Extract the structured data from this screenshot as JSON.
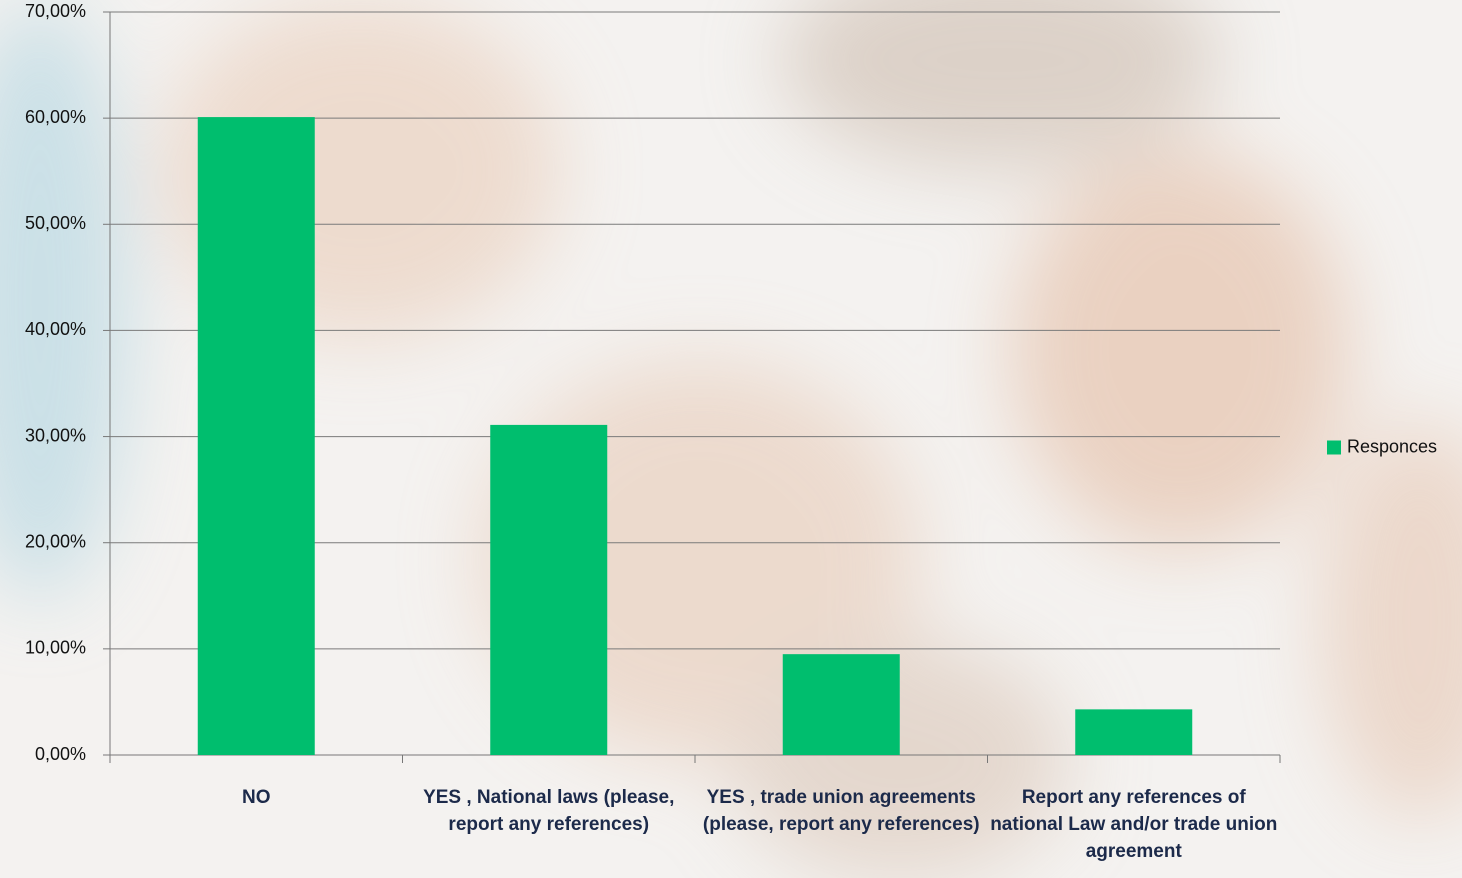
{
  "chart_data": {
    "type": "bar",
    "categories": [
      "NO",
      "YES , National laws (please, report  any references)",
      "YES , trade union agreements (please, report  any references)",
      "Report  any references of national Law and/or trade union agreement"
    ],
    "series": [
      {
        "name": "Responces",
        "color": "#00be6e",
        "values": [
          60.1,
          31.1,
          9.5,
          4.3
        ]
      }
    ],
    "ylim": [
      0,
      70
    ],
    "yticks": [
      {
        "value": 0,
        "label": "0,00%"
      },
      {
        "value": 10,
        "label": "10,00%"
      },
      {
        "value": 20,
        "label": "20,00%"
      },
      {
        "value": 30,
        "label": "30,00%"
      },
      {
        "value": 40,
        "label": "40,00%"
      },
      {
        "value": 50,
        "label": "50,00%"
      },
      {
        "value": 60,
        "label": "60,00%"
      },
      {
        "value": 70,
        "label": "70,00%"
      }
    ],
    "grid": true,
    "legend": "right"
  }
}
